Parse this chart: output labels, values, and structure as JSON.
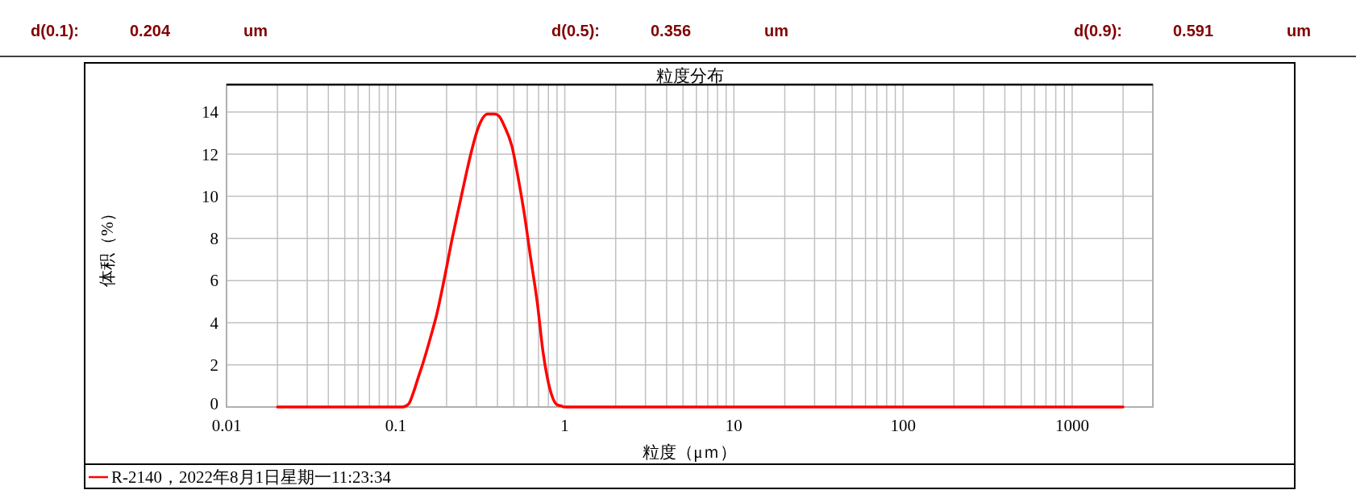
{
  "chart_data": {
    "type": "line",
    "title": "粒度分布",
    "xlabel": "粒度（μｍ）",
    "ylabel": "体积（%）",
    "annotations": [
      "d(0.1):",
      "0.204",
      "um",
      "d(0.5):",
      "0.356",
      "um",
      "d(0.9):",
      "0.591",
      "um"
    ],
    "log": "x",
    "grid": true,
    "legend": "bottom left",
    "xlim": [
      0.01,
      3000
    ],
    "ylim": [
      0,
      15.3
    ],
    "xticks": [
      0.01,
      {
        "value": 0.02,
        "label": null
      },
      {
        "value": 0.03,
        "label": null
      },
      {
        "value": 0.04,
        "label": null
      },
      {
        "value": 0.05,
        "label": null
      },
      {
        "value": 0.06,
        "label": null
      },
      {
        "value": 0.07,
        "label": null
      },
      {
        "value": 0.08,
        "label": null
      },
      {
        "value": 0.09,
        "label": null
      },
      0.1,
      {
        "value": 0.2,
        "label": null
      },
      {
        "value": 0.3,
        "label": null
      },
      {
        "value": 0.4,
        "label": null
      },
      {
        "value": 0.5,
        "label": null
      },
      {
        "value": 0.6,
        "label": null
      },
      {
        "value": 0.7,
        "label": null
      },
      {
        "value": 0.8,
        "label": null
      },
      {
        "value": 0.9,
        "label": null
      },
      1,
      {
        "value": 2,
        "label": null
      },
      {
        "value": 3,
        "label": null
      },
      {
        "value": 4,
        "label": null
      },
      {
        "value": 5,
        "label": null
      },
      {
        "value": 6,
        "label": null
      },
      {
        "value": 7,
        "label": null
      },
      {
        "value": 8,
        "label": null
      },
      {
        "value": 9,
        "label": null
      },
      10,
      {
        "value": 20,
        "label": null
      },
      {
        "value": 30,
        "label": null
      },
      {
        "value": 40,
        "label": null
      },
      {
        "value": 50,
        "label": null
      },
      {
        "value": 60,
        "label": null
      },
      {
        "value": 70,
        "label": null
      },
      {
        "value": 80,
        "label": null
      },
      {
        "value": 90,
        "label": null
      },
      100,
      {
        "value": 200,
        "label": null
      },
      {
        "value": 300,
        "label": null
      },
      {
        "value": 400,
        "label": null
      },
      {
        "value": 500,
        "label": null
      },
      {
        "value": 600,
        "label": null
      },
      {
        "value": 700,
        "label": null
      },
      {
        "value": 800,
        "label": null
      },
      {
        "value": 900,
        "label": null
      },
      1000,
      {
        "value": 2000,
        "label": null
      },
      {
        "value": 3000,
        "label": null
      }
    ],
    "yticks": [
      0,
      2,
      4,
      6,
      8,
      10,
      12,
      14
    ],
    "series": [
      {
        "name": "R-2140，2022年8月1日星期一11:23:34",
        "color": "#ff0000",
        "x": [
          0.02,
          0.11,
          0.119,
          0.128,
          0.136,
          0.144,
          0.162,
          0.175,
          0.193,
          0.216,
          0.234,
          0.257,
          0.278,
          0.306,
          0.35,
          0.386,
          0.409,
          0.441,
          0.486,
          0.535,
          0.578,
          0.625,
          0.689,
          0.744,
          0.788,
          0.834,
          0.901,
          0.955,
          0.99,
          2000
        ],
        "values": [
          0,
          0,
          0.13,
          0.74,
          1.4,
          2.0,
          3.4,
          4.4,
          6.0,
          8.0,
          9.3,
          10.8,
          12.0,
          13.2,
          13.9,
          13.9,
          13.8,
          13.3,
          12.4,
          10.7,
          9.1,
          7.2,
          4.9,
          2.6,
          1.4,
          0.6,
          0.1,
          0.05,
          0,
          0
        ]
      }
    ]
  }
}
